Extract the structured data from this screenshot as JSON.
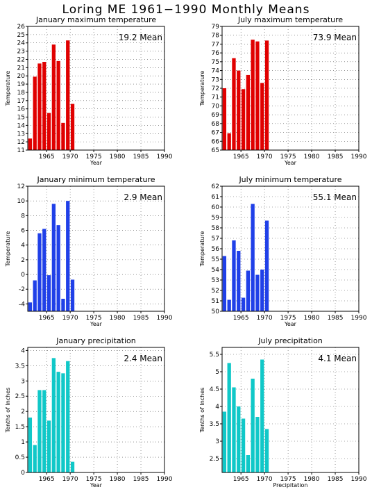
{
  "title": "Loring ME   1961−1990 Monthly Means",
  "chart_data": [
    {
      "type": "bar",
      "title": "January maximum temperature",
      "mean_label": "19.2  Mean",
      "xlabel": "Year",
      "ylabel": "Temperature",
      "color": "#e00000",
      "xlim": [
        1961,
        1990
      ],
      "x_ticks": [
        1965,
        1970,
        1975,
        1980,
        1985,
        1990
      ],
      "ylim": [
        11,
        26
      ],
      "y_ticks": [
        11,
        12,
        13,
        14,
        15,
        16,
        17,
        18,
        19,
        20,
        21,
        22,
        23,
        24,
        25,
        26
      ],
      "x": [
        1961,
        1962,
        1963,
        1964,
        1965,
        1966,
        1967,
        1968,
        1969,
        1970
      ],
      "values": [
        12.4,
        19.9,
        21.5,
        21.7,
        15.5,
        23.8,
        21.8,
        14.3,
        24.3,
        16.6
      ]
    },
    {
      "type": "bar",
      "title": "July maximum temperature",
      "mean_label": "73.9  Mean",
      "xlabel": "Year",
      "ylabel": "Temperature",
      "color": "#e00000",
      "xlim": [
        1961,
        1990
      ],
      "x_ticks": [
        1965,
        1970,
        1975,
        1980,
        1985,
        1990
      ],
      "ylim": [
        65,
        79
      ],
      "y_ticks": [
        65,
        66,
        67,
        68,
        69,
        70,
        71,
        72,
        73,
        74,
        75,
        76,
        77,
        78,
        79
      ],
      "x": [
        1961,
        1962,
        1963,
        1964,
        1965,
        1966,
        1967,
        1968,
        1969,
        1970
      ],
      "values": [
        72.0,
        66.9,
        75.4,
        74.0,
        71.9,
        73.5,
        77.5,
        77.3,
        72.6,
        77.4
      ]
    },
    {
      "type": "bar",
      "title": "January minimum temperature",
      "mean_label": "2.9  Mean",
      "xlabel": "Year",
      "ylabel": "Temperature",
      "color": "#2040e8",
      "xlim": [
        1961,
        1990
      ],
      "x_ticks": [
        1965,
        1970,
        1975,
        1980,
        1985,
        1990
      ],
      "ylim": [
        -5,
        12
      ],
      "y_ticks": [
        -4,
        -2,
        0,
        2,
        4,
        6,
        8,
        10,
        12
      ],
      "x": [
        1961,
        1962,
        1963,
        1964,
        1965,
        1966,
        1967,
        1968,
        1969,
        1970
      ],
      "values": [
        -3.8,
        -0.8,
        5.6,
        6.2,
        -0.1,
        9.6,
        6.7,
        -3.3,
        10.0,
        -0.7
      ]
    },
    {
      "type": "bar",
      "title": "July minimum temperature",
      "mean_label": "55.1  Mean",
      "xlabel": "Year",
      "ylabel": "Temperature",
      "color": "#2040e8",
      "xlim": [
        1961,
        1990
      ],
      "x_ticks": [
        1965,
        1970,
        1975,
        1980,
        1985,
        1990
      ],
      "ylim": [
        50,
        62
      ],
      "y_ticks": [
        50,
        51,
        52,
        53,
        54,
        55,
        56,
        57,
        58,
        59,
        60,
        61,
        62
      ],
      "x": [
        1961,
        1962,
        1963,
        1964,
        1965,
        1966,
        1967,
        1968,
        1969,
        1970
      ],
      "values": [
        55.3,
        51.1,
        56.8,
        55.8,
        51.3,
        53.9,
        60.3,
        53.5,
        54.0,
        58.7
      ]
    },
    {
      "type": "bar",
      "title": "January precipitation",
      "mean_label": "2.4  Mean",
      "xlabel": "Year",
      "ylabel": "Tenths of Inches",
      "color": "#10c8c8",
      "xlim": [
        1961,
        1990
      ],
      "x_ticks": [
        1965,
        1970,
        1975,
        1980,
        1985,
        1990
      ],
      "ylim": [
        0,
        4.1
      ],
      "y_ticks": [
        0,
        0.5,
        1,
        1.5,
        2,
        2.5,
        3,
        3.5,
        4
      ],
      "y_tick_labels": [
        "0",
        "0.5",
        "1",
        "1.5",
        "2",
        "2.5",
        "3",
        "3.5",
        "4"
      ],
      "x": [
        1961,
        1962,
        1963,
        1964,
        1965,
        1966,
        1967,
        1968,
        1969,
        1970
      ],
      "values": [
        1.8,
        0.9,
        2.7,
        2.7,
        1.7,
        3.75,
        3.3,
        3.25,
        3.65,
        0.35
      ]
    },
    {
      "type": "bar",
      "title": "July precipitation",
      "mean_label": "4.1  Mean",
      "xlabel": "Precipitation",
      "ylabel": "Tenths of Inches",
      "color": "#10c8c8",
      "xlim": [
        1961,
        1990
      ],
      "x_ticks": [
        1965,
        1970,
        1975,
        1980,
        1985,
        1990
      ],
      "ylim": [
        2.1,
        5.7
      ],
      "y_ticks": [
        2.5,
        3,
        3.5,
        4,
        4.5,
        5,
        5.5
      ],
      "y_tick_labels": [
        "2.5",
        "3",
        "3.5",
        "4",
        "4.5",
        "5",
        "5.5"
      ],
      "x": [
        1961,
        1962,
        1963,
        1964,
        1965,
        1966,
        1967,
        1968,
        1969,
        1970
      ],
      "values": [
        3.85,
        5.25,
        4.55,
        4.0,
        3.65,
        2.6,
        4.8,
        3.7,
        5.35,
        3.35
      ]
    }
  ]
}
